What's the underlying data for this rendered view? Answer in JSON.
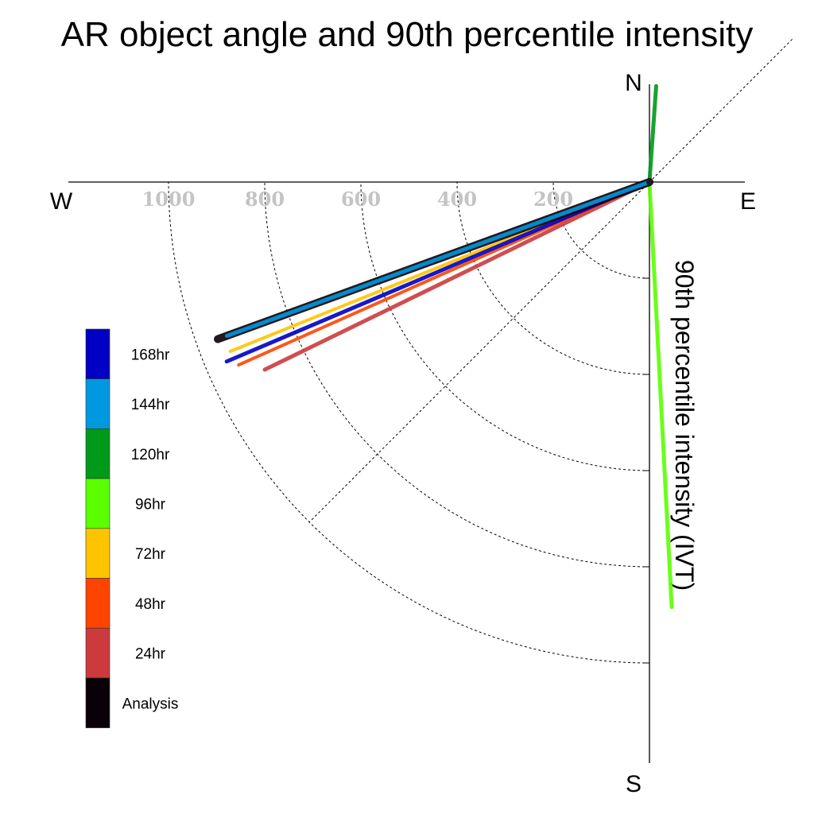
{
  "chart_data": {
    "type": "polar-vector",
    "title": "AR object angle and 90th percentile intensity",
    "ylabel": "90th percentile intensity (IVT)",
    "compass": {
      "north": "N",
      "south": "S",
      "east": "E",
      "west": "W"
    },
    "radial_ticks": [
      200,
      400,
      600,
      800,
      1000
    ],
    "radial_tick_labels": [
      "200",
      "400",
      "600",
      "800",
      "1000"
    ],
    "rmax": 1200,
    "diagonal_gridlines_deg": [
      45,
      225
    ],
    "series": [
      {
        "name": "Analysis",
        "color": "#0a0008",
        "angle_deg": 250,
        "intensity": 955,
        "width": 10
      },
      {
        "name": "24hr",
        "color": "#cc3a3e",
        "angle_deg": 244,
        "intensity": 890,
        "width": 5
      },
      {
        "name": "48hr",
        "color": "#ff4400",
        "angle_deg": 246,
        "intensity": 935,
        "width": 4
      },
      {
        "name": "72hr",
        "color": "#ffc400",
        "angle_deg": 248,
        "intensity": 940,
        "width": 4
      },
      {
        "name": "96hr",
        "color": "#5aff00",
        "angle_deg": 177,
        "intensity": 885,
        "width": 5
      },
      {
        "name": "120hr",
        "color": "#009a1a",
        "angle_deg": 4,
        "intensity": 200,
        "width": 5
      },
      {
        "name": "144hr",
        "color": "#0098de",
        "angle_deg": 250,
        "intensity": 935,
        "width": 5
      },
      {
        "name": "168hr",
        "color": "#0000c4",
        "angle_deg": 247,
        "intensity": 955,
        "width": 5
      }
    ],
    "legend_order": [
      "168hr",
      "144hr",
      "120hr",
      "96hr",
      "72hr",
      "48hr",
      "24hr",
      "Analysis"
    ],
    "legend_position": "lower-left"
  }
}
